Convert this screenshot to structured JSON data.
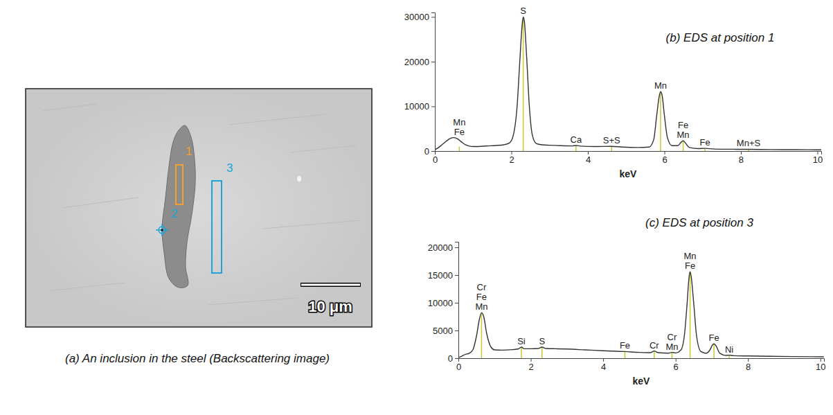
{
  "image": {
    "caption": "(a) An inclusion in the steel (Backscattering image)",
    "markers": [
      {
        "label": "1",
        "color": "#f0a030"
      },
      {
        "label": "2",
        "color": "#1aa7d8"
      },
      {
        "label": "3",
        "color": "#1aa7d8"
      }
    ],
    "scale_bar": {
      "label": "10 μm"
    }
  },
  "chart_data": [
    {
      "type": "line",
      "title": "(b) EDS at position 1",
      "x_label": "keV",
      "color": "#333333",
      "x": [
        0,
        0.1,
        0.2,
        0.3,
        0.4,
        0.5,
        0.6,
        0.7,
        0.8,
        0.9,
        1.0,
        1.2,
        1.4,
        1.6,
        1.8,
        1.95,
        2.05,
        2.15,
        2.22,
        2.28,
        2.31,
        2.34,
        2.4,
        2.47,
        2.55,
        2.65,
        2.8,
        3.0,
        3.3,
        3.6,
        3.69,
        3.8,
        4.2,
        4.62,
        4.9,
        5.3,
        5.6,
        5.72,
        5.8,
        5.86,
        5.9,
        5.94,
        6.0,
        6.08,
        6.2,
        6.35,
        6.44,
        6.49,
        6.55,
        6.65,
        6.9,
        7.06,
        7.3,
        7.8,
        8.2,
        8.8,
        9.4,
        10.0,
        10.1
      ],
      "values": [
        300,
        800,
        1500,
        2200,
        2800,
        3000,
        2700,
        2000,
        1400,
        1100,
        1000,
        1050,
        1150,
        1250,
        1400,
        1800,
        3500,
        10000,
        20000,
        28000,
        30000,
        29000,
        21000,
        10000,
        3500,
        1700,
        1400,
        1300,
        1200,
        1150,
        1250,
        1100,
        1000,
        1050,
        900,
        800,
        900,
        2500,
        8000,
        12000,
        13300,
        12500,
        8000,
        3000,
        1200,
        1200,
        2000,
        2300,
        1800,
        800,
        550,
        600,
        450,
        400,
        380,
        330,
        300,
        270,
        260
      ],
      "xlim": [
        0,
        10.1
      ],
      "ylim": [
        0,
        31000
      ],
      "xticks": [
        0,
        2,
        4,
        6,
        8,
        10
      ],
      "yticks": [
        0,
        10000,
        20000,
        30000
      ],
      "annotations": [
        {
          "text": [
            "Mn",
            "Fe"
          ],
          "x": 0.64,
          "y": 1000,
          "color": "#c8c832"
        },
        {
          "text": [
            "S"
          ],
          "x": 2.31,
          "y": 30000,
          "color": "#c8c832"
        },
        {
          "text": [
            "Ca"
          ],
          "x": 3.69,
          "y": 1200,
          "color": "#c8c832"
        },
        {
          "text": [
            "S+S"
          ],
          "x": 4.62,
          "y": 1000,
          "color": "#c8c832"
        },
        {
          "text": [
            "Mn"
          ],
          "x": 5.9,
          "y": 13300,
          "color": "#c8c832"
        },
        {
          "text": [
            "Fe",
            "Mn"
          ],
          "x": 6.49,
          "y": 2300,
          "color": "#c8c832"
        },
        {
          "text": [
            "Fe"
          ],
          "x": 7.06,
          "y": 600,
          "color": "#c8c832"
        },
        {
          "text": [
            "Mn+S"
          ],
          "x": 8.2,
          "y": 400,
          "color": "#c8c832"
        }
      ]
    },
    {
      "type": "line",
      "title": "(c) EDS at position 3",
      "x_label": "keV",
      "color": "#333333",
      "x": [
        0,
        0.1,
        0.2,
        0.3,
        0.4,
        0.5,
        0.58,
        0.64,
        0.7,
        0.78,
        0.9,
        1.0,
        1.2,
        1.5,
        1.65,
        1.74,
        1.82,
        2.0,
        2.2,
        2.31,
        2.42,
        2.7,
        3.0,
        3.5,
        4.0,
        4.6,
        5.0,
        5.3,
        5.41,
        5.52,
        5.8,
        5.9,
        6.0,
        6.15,
        6.25,
        6.32,
        6.37,
        6.4,
        6.43,
        6.5,
        6.58,
        6.7,
        6.85,
        6.95,
        7.02,
        7.06,
        7.12,
        7.22,
        7.4,
        7.48,
        7.6,
        8.0,
        8.6,
        9.2,
        10.0,
        10.1
      ],
      "values": [
        100,
        400,
        700,
        900,
        1500,
        4000,
        7000,
        8200,
        7500,
        4500,
        2000,
        1500,
        1450,
        1550,
        1650,
        2000,
        1700,
        1700,
        1750,
        2000,
        1750,
        1700,
        1650,
        1500,
        1350,
        1200,
        1050,
        1000,
        1300,
        1000,
        900,
        1050,
        950,
        1500,
        4500,
        10000,
        14500,
        15600,
        14800,
        10000,
        4000,
        1200,
        900,
        1500,
        2400,
        2600,
        2200,
        900,
        500,
        550,
        450,
        400,
        350,
        300,
        250,
        240
      ],
      "xlim": [
        0,
        10.1
      ],
      "ylim": [
        0,
        21000
      ],
      "xticks": [
        0,
        2,
        4,
        6,
        8,
        10
      ],
      "yticks": [
        0,
        5000,
        10000,
        15000,
        20000
      ],
      "annotations": [
        {
          "text": [
            "Cr",
            "Fe",
            "Mn"
          ],
          "x": 0.64,
          "y": 8200,
          "color": "#c8c832"
        },
        {
          "text": [
            "Si"
          ],
          "x": 1.74,
          "y": 2000,
          "color": "#c8c832"
        },
        {
          "text": [
            "S"
          ],
          "x": 2.31,
          "y": 2000,
          "color": "#c8c832"
        },
        {
          "text": [
            "Fe"
          ],
          "x": 4.6,
          "y": 1200,
          "color": "#c8c832"
        },
        {
          "text": [
            "Cr"
          ],
          "x": 5.41,
          "y": 1300,
          "color": "#c8c832"
        },
        {
          "text": [
            "Cr",
            "Mn"
          ],
          "x": 5.9,
          "y": 1050,
          "color": "#c8c832"
        },
        {
          "text": [
            "Mn",
            "Fe"
          ],
          "x": 6.4,
          "y": 15600,
          "color": "#c8c832"
        },
        {
          "text": [
            "Fe"
          ],
          "x": 7.06,
          "y": 2600,
          "color": "#c8c832"
        },
        {
          "text": [
            "Ni"
          ],
          "x": 7.48,
          "y": 550,
          "color": "#c8c832"
        }
      ]
    }
  ]
}
